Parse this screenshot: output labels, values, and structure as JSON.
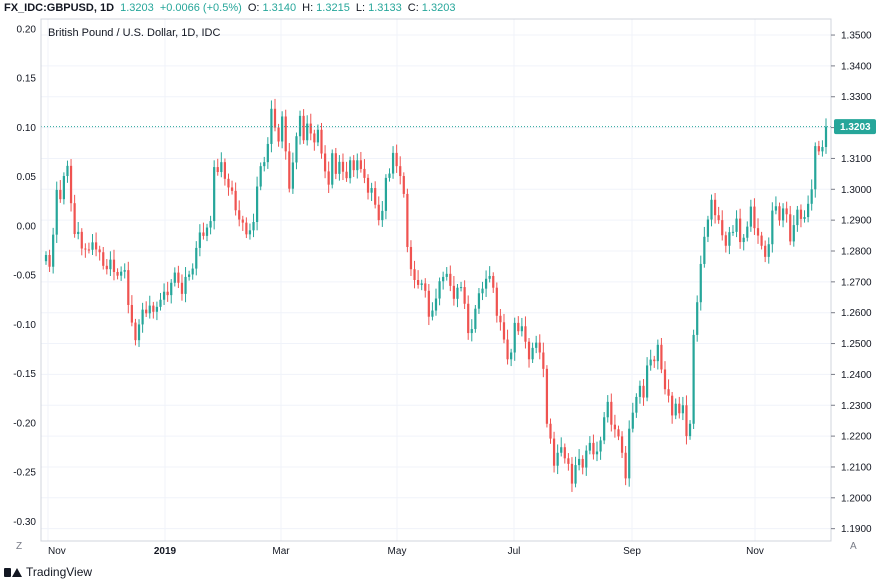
{
  "header": {
    "symbol": "FX_IDC:GBPUSD, 1D",
    "last": "1.3203",
    "change": "+0.0066 (+0.5%)",
    "o_label": "O:",
    "o_val": "1.3140",
    "h_label": "H:",
    "h_val": "1.3215",
    "l_label": "L:",
    "l_val": "1.3133",
    "c_label": "C:",
    "c_val": "1.3203"
  },
  "footer": {
    "brand": "TradingView",
    "brand_icon": "tradingview-logo-icon"
  },
  "colors": {
    "up": "#26a69a",
    "down": "#ef5350",
    "grid": "#f0f3fa",
    "axis": "#787b86",
    "last_price": "#26a69a"
  },
  "chart_data": {
    "type": "candlestick",
    "title": "British Pound / U.S. Dollar, 1D, IDC",
    "x_ticks": [
      "Nov",
      "2019",
      "Mar",
      "May",
      "Jul",
      "Sep",
      "Nov"
    ],
    "left_axis": {
      "range": [
        -0.32,
        0.21
      ],
      "ticks": [
        0.2,
        0.15,
        0.1,
        0.05,
        0.0,
        -0.05,
        -0.1,
        -0.15,
        -0.2,
        -0.25,
        -0.3
      ]
    },
    "right_axis": {
      "range": [
        1.186,
        1.3552
      ],
      "ticks": [
        1.35,
        1.34,
        1.33,
        1.32,
        1.31,
        1.3,
        1.29,
        1.28,
        1.27,
        1.26,
        1.25,
        1.24,
        1.23,
        1.22,
        1.21,
        1.2,
        1.19
      ]
    },
    "last_price_label": "1.3203",
    "last_price": 1.3203,
    "zero_close": 1.2911,
    "grid": true,
    "corner_left": "Z",
    "corner_right": "A",
    "closes": [
      1.2787,
      1.2749,
      1.2853,
      1.2998,
      1.2968,
      1.3043,
      1.3076,
      1.2955,
      1.2855,
      1.2862,
      1.2808,
      1.2805,
      1.2804,
      1.2828,
      1.2805,
      1.2796,
      1.2752,
      1.2741,
      1.2772,
      1.2732,
      1.272,
      1.2733,
      1.2738,
      1.2625,
      1.2568,
      1.2511,
      1.2562,
      1.261,
      1.2598,
      1.2623,
      1.2603,
      1.2619,
      1.2642,
      1.2668,
      1.2657,
      1.2697,
      1.273,
      1.2697,
      1.2661,
      1.2716,
      1.2724,
      1.2743,
      1.281,
      1.286,
      1.2849,
      1.2876,
      1.2897,
      1.3072,
      1.3056,
      1.3088,
      1.3034,
      1.3006,
      1.2995,
      1.2932,
      1.2902,
      1.2892,
      1.2854,
      1.2867,
      1.2894,
      1.3009,
      1.3075,
      1.3088,
      1.3147,
      1.3261,
      1.32,
      1.3155,
      1.3236,
      1.3123,
      1.3002,
      1.3087,
      1.3172,
      1.3238,
      1.3159,
      1.3213,
      1.3181,
      1.3152,
      1.3193,
      1.3116,
      1.3058,
      1.3015,
      1.3117,
      1.305,
      1.3089,
      1.3057,
      1.3036,
      1.3094,
      1.3062,
      1.3094,
      1.3066,
      1.3037,
      1.2989,
      1.3004,
      1.295,
      1.29,
      1.293,
      1.3037,
      1.3051,
      1.3118,
      1.3075,
      1.3043,
      1.2985,
      1.2813,
      1.2741,
      1.2706,
      1.269,
      1.2695,
      1.2671,
      1.2587,
      1.2607,
      1.2646,
      1.2702,
      1.2716,
      1.2726,
      1.2687,
      1.2645,
      1.2681,
      1.2683,
      1.2629,
      1.2534,
      1.2547,
      1.2613,
      1.2663,
      1.2678,
      1.271,
      1.2719,
      1.2681,
      1.259,
      1.2569,
      1.2513,
      1.2449,
      1.2471,
      1.2567,
      1.254,
      1.2556,
      1.2506,
      1.2449,
      1.2486,
      1.2503,
      1.2471,
      1.2418,
      1.224,
      1.2192,
      1.2104,
      1.2146,
      1.2164,
      1.2128,
      1.211,
      1.2046,
      1.2106,
      1.2126,
      1.2098,
      1.2153,
      1.2178,
      1.2141,
      1.215,
      1.2186,
      1.2261,
      1.2311,
      1.2237,
      1.2222,
      1.2199,
      1.2146,
      1.2063,
      1.2224,
      1.2276,
      1.2327,
      1.2363,
      1.2325,
      1.2429,
      1.2448,
      1.2443,
      1.2496,
      1.2416,
      1.2352,
      1.2331,
      1.2267,
      1.2305,
      1.2274,
      1.23,
      1.22,
      1.224,
      1.2528,
      1.2634,
      1.2758,
      1.2846,
      1.2902,
      1.2966,
      1.2916,
      1.29,
      1.2851,
      1.2817,
      1.2861,
      1.2862,
      1.2905,
      1.2829,
      1.2843,
      1.2879,
      1.2944,
      1.2874,
      1.285,
      1.2817,
      1.2781,
      1.2822,
      1.2931,
      1.2945,
      1.2899,
      1.2938,
      1.2919,
      1.2831,
      1.2884,
      1.2934,
      1.2904,
      1.291,
      1.2953,
      1.3,
      1.314,
      1.3123,
      1.3137,
      1.3203
    ]
  }
}
